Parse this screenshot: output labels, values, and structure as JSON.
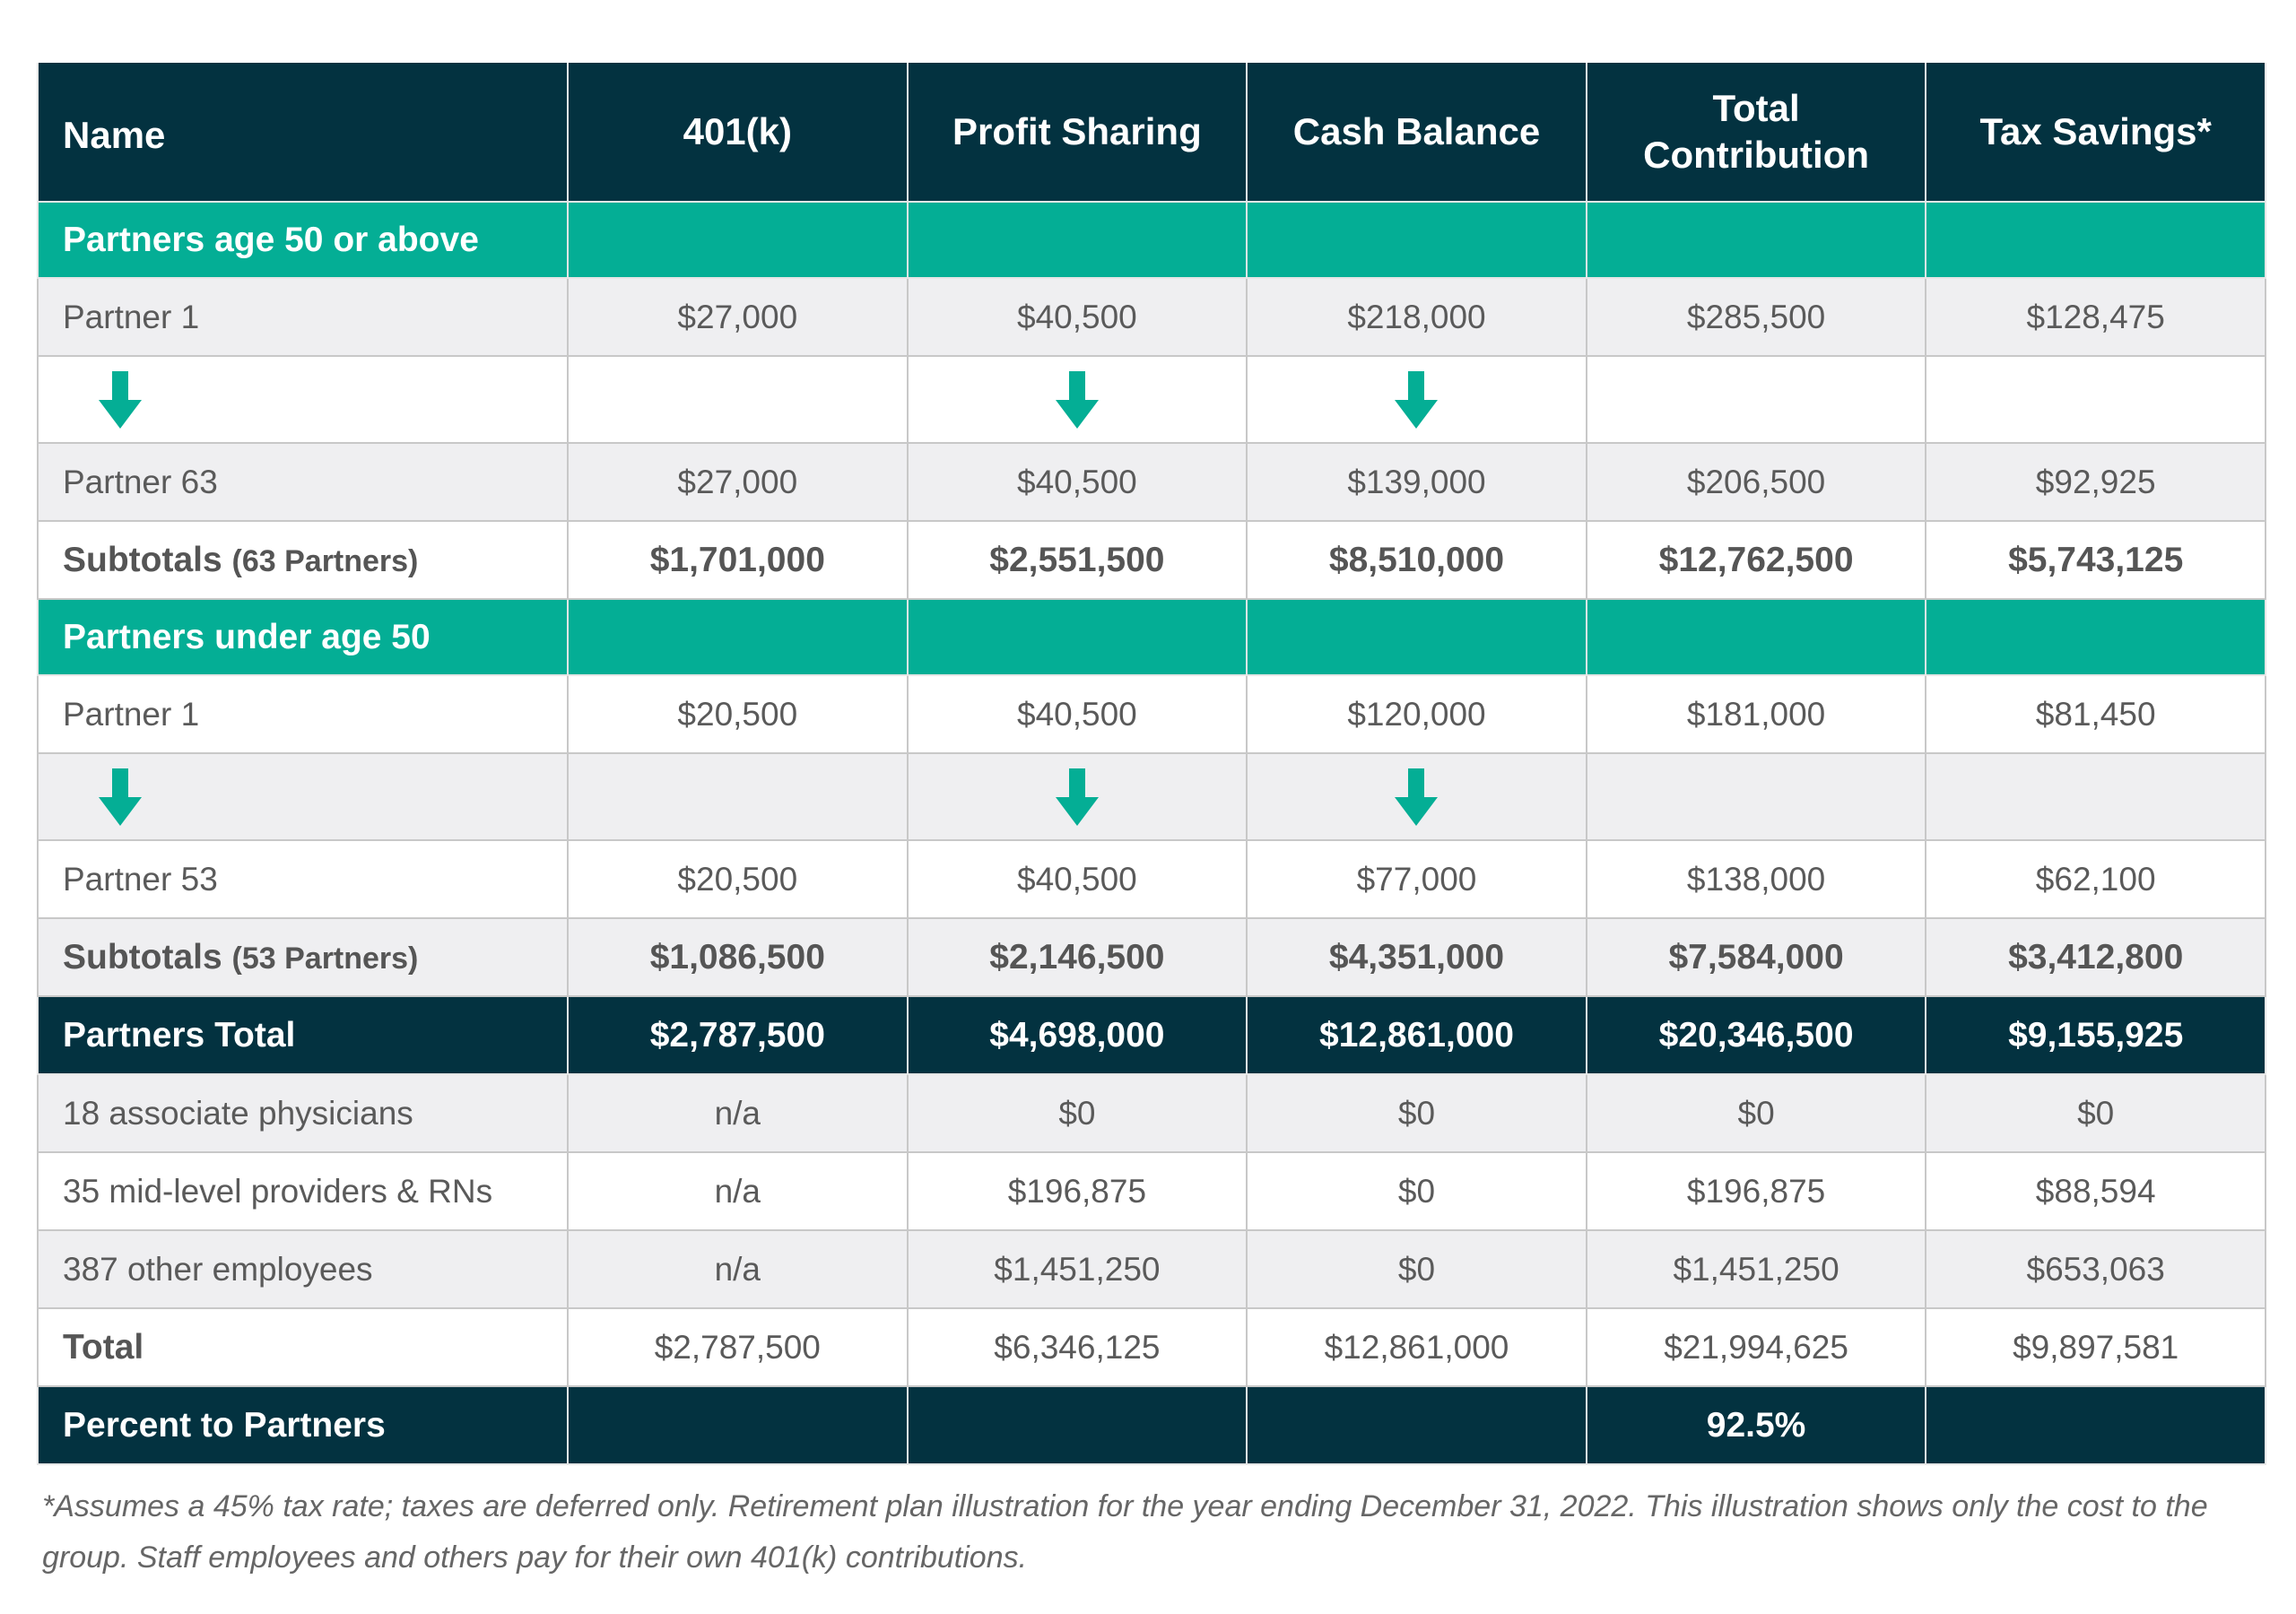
{
  "colors": {
    "header_bg": "#033240",
    "section_bg": "#04ae95",
    "row_gray": "#efeff1",
    "arrow": "#04ae95"
  },
  "header": {
    "name": "Name",
    "k401": "401(k)",
    "profit_sharing": "Profit Sharing",
    "cash_balance": "Cash Balance",
    "total_contribution_line1": "Total",
    "total_contribution_line2": "Contribution",
    "tax_savings": "Tax Savings*"
  },
  "section1": {
    "title": "Partners age 50 or above",
    "first": {
      "name": "Partner 1",
      "k401": "$27,000",
      "profit_sharing": "$40,500",
      "cash_balance": "$218,000",
      "total": "$285,500",
      "tax_savings": "$128,475"
    },
    "last": {
      "name": "Partner 63",
      "k401": "$27,000",
      "profit_sharing": "$40,500",
      "cash_balance": "$139,000",
      "total": "$206,500",
      "tax_savings": "$92,925"
    },
    "subtotal": {
      "label": "Subtotals",
      "count": "(63 Partners)",
      "k401": "$1,701,000",
      "profit_sharing": "$2,551,500",
      "cash_balance": "$8,510,000",
      "total": "$12,762,500",
      "tax_savings": "$5,743,125"
    }
  },
  "section2": {
    "title": "Partners under age 50",
    "first": {
      "name": "Partner 1",
      "k401": "$20,500",
      "profit_sharing": "$40,500",
      "cash_balance": "$120,000",
      "total": "$181,000",
      "tax_savings": "$81,450"
    },
    "last": {
      "name": "Partner 53",
      "k401": "$20,500",
      "profit_sharing": "$40,500",
      "cash_balance": "$77,000",
      "total": "$138,000",
      "tax_savings": "$62,100"
    },
    "subtotal": {
      "label": "Subtotals",
      "count": "(53 Partners)",
      "k401": "$1,086,500",
      "profit_sharing": "$2,146,500",
      "cash_balance": "$4,351,000",
      "total": "$7,584,000",
      "tax_savings": "$3,412,800"
    }
  },
  "partners_total": {
    "name": "Partners Total",
    "k401": "$2,787,500",
    "profit_sharing": "$4,698,000",
    "cash_balance": "$12,861,000",
    "total": "$20,346,500",
    "tax_savings": "$9,155,925"
  },
  "others": [
    {
      "name": "18 associate physicians",
      "k401": "n/a",
      "profit_sharing": "$0",
      "cash_balance": "$0",
      "total": "$0",
      "tax_savings": "$0"
    },
    {
      "name": "35 mid-level providers & RNs",
      "k401": "n/a",
      "profit_sharing": "$196,875",
      "cash_balance": "$0",
      "total": "$196,875",
      "tax_savings": "$88,594"
    },
    {
      "name": "387 other employees",
      "k401": "n/a",
      "profit_sharing": "$1,451,250",
      "cash_balance": "$0",
      "total": "$1,451,250",
      "tax_savings": "$653,063"
    }
  ],
  "grand_total": {
    "name": "Total",
    "k401": "$2,787,500",
    "profit_sharing": "$6,346,125",
    "cash_balance": "$12,861,000",
    "total": "$21,994,625",
    "tax_savings": "$9,897,581"
  },
  "percent": {
    "name": "Percent to Partners",
    "total": "92.5%"
  },
  "footnote": "*Assumes a 45% tax rate; taxes are deferred only. Retirement plan illustration for the year ending December 31, 2022. This illustration shows only the cost to the group. Staff employees and others pay for their own 401(k) contributions."
}
